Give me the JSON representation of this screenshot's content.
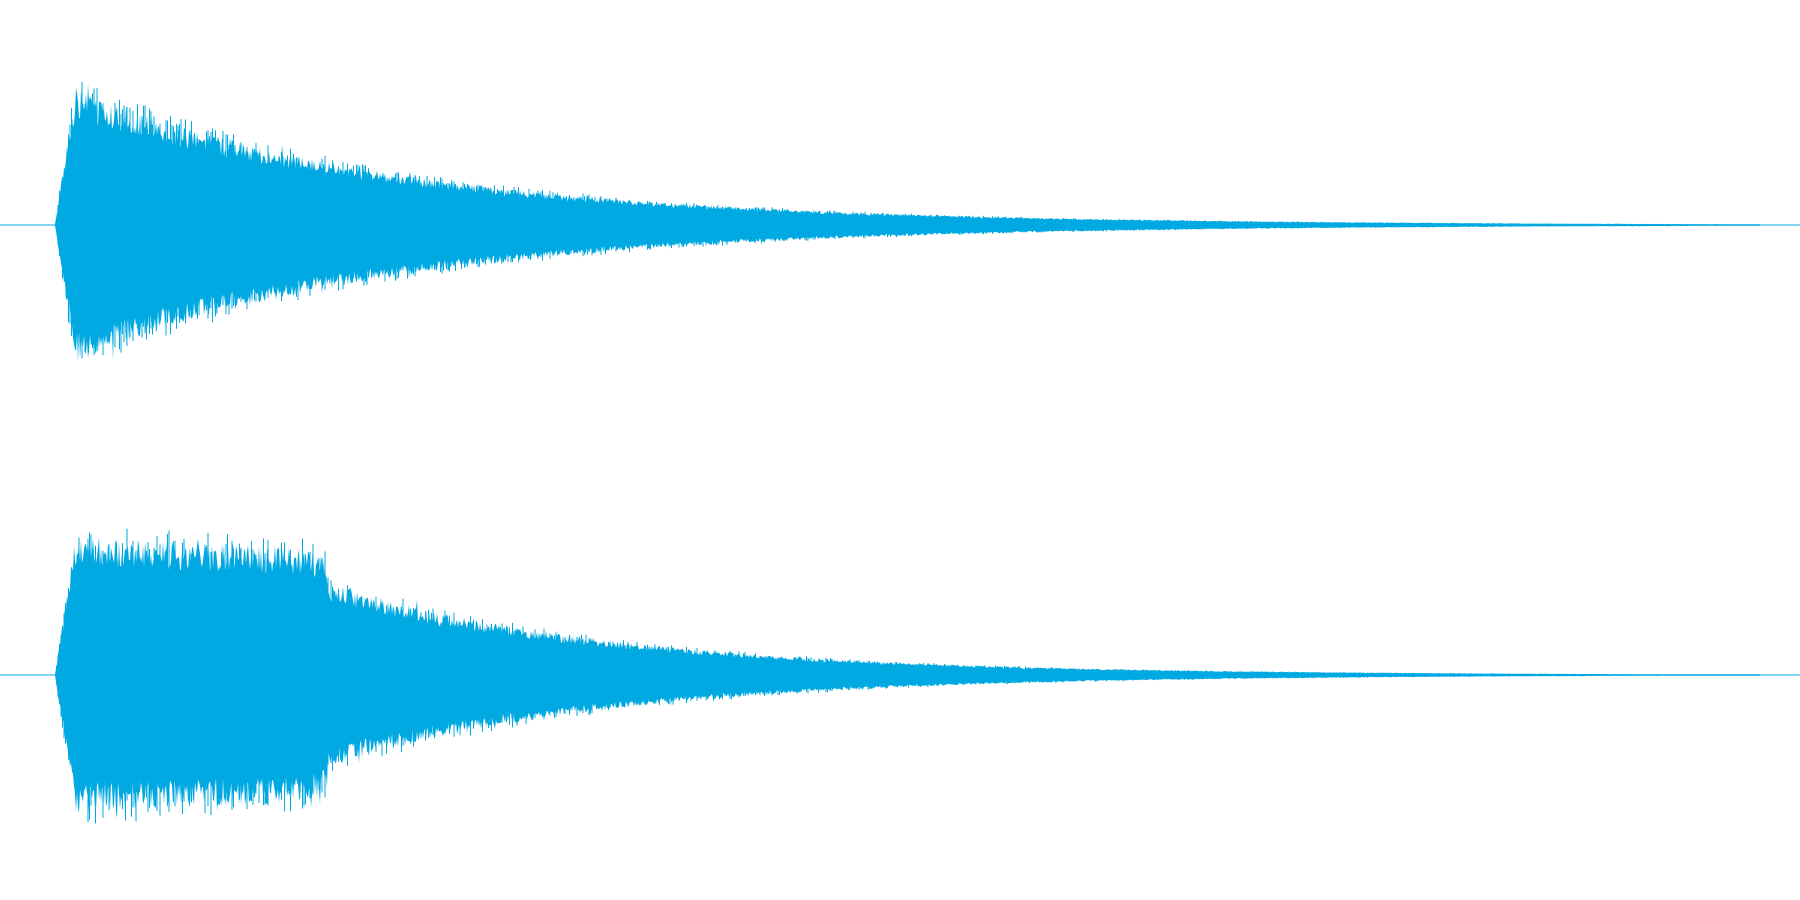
{
  "view": {
    "background_color": "#ffffff",
    "waveform_color": "#00a9e2"
  },
  "channels": [
    {
      "name": "",
      "envelope_shape": "fast attack, exponential decay",
      "peak_amplitude": 0.86,
      "decay_to_silence_fraction": 0.98
    },
    {
      "name": "",
      "envelope_shape": "fast attack, sustained plateau, exponential decay",
      "peak_amplitude": 0.84,
      "decay_to_silence_fraction": 0.98
    }
  ]
}
